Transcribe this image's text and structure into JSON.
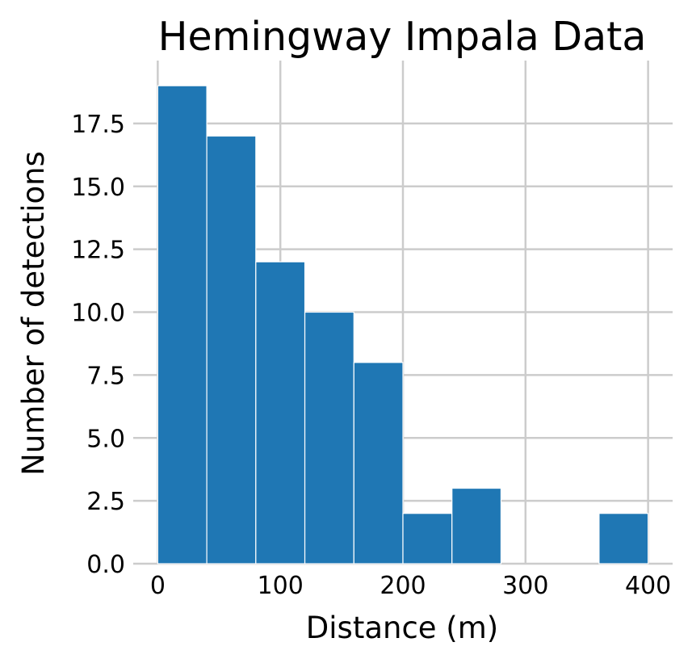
{
  "chart_data": {
    "type": "bar",
    "title": "Hemingway Impala Data",
    "xlabel": "Distance (m)",
    "ylabel": "Number of detections",
    "bin_edges": [
      0,
      40,
      80,
      120,
      160,
      200,
      240,
      280,
      320,
      360,
      400
    ],
    "values": [
      19,
      17,
      12,
      10,
      8,
      2,
      3,
      0,
      0,
      2
    ],
    "xlim": [
      -20,
      420
    ],
    "ylim": [
      0,
      20
    ],
    "xticks": [
      0,
      100,
      200,
      300,
      400
    ],
    "xtick_labels": [
      "0",
      "100",
      "200",
      "300",
      "400"
    ],
    "yticks": [
      0,
      2.5,
      5,
      7.5,
      10,
      12.5,
      15,
      17.5
    ],
    "ytick_labels": [
      "0.0",
      "2.5",
      "5.0",
      "7.5",
      "10.0",
      "12.5",
      "15.0",
      "17.5"
    ],
    "grid": true,
    "bar_color": "#1f77b4",
    "grid_color": "#cccccc"
  }
}
